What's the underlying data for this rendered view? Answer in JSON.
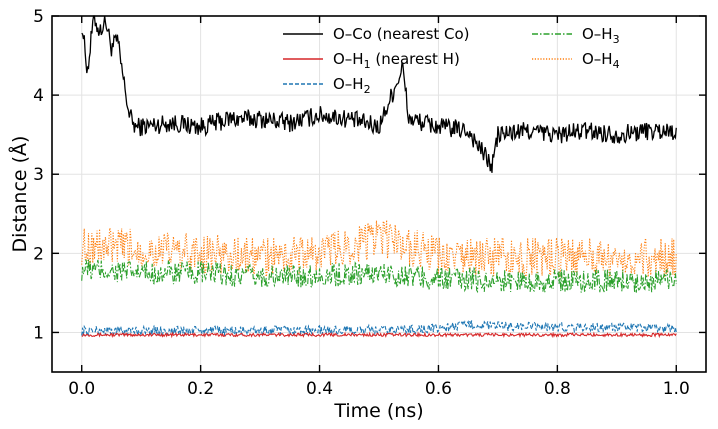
{
  "chart_data": {
    "type": "line",
    "title": "",
    "xlabel": "Time (ns)",
    "ylabel": "Distance (Å)",
    "xlim": [
      -0.05,
      1.05
    ],
    "ylim": [
      0.5,
      5.0
    ],
    "xticks": [
      0.0,
      0.2,
      0.4,
      0.6,
      0.8,
      1.0
    ],
    "xtick_labels": [
      "0.0",
      "0.2",
      "0.4",
      "0.6",
      "0.8",
      "1.0"
    ],
    "yticks": [
      1,
      2,
      3,
      4,
      5
    ],
    "ytick_labels": [
      "1",
      "2",
      "3",
      "4",
      "5"
    ],
    "grid": true,
    "legend_position": "top-right",
    "series": [
      {
        "name": "O–Co (nearest Co)",
        "legend_main": "O–Co (nearest Co)",
        "legend_sub": "",
        "legend_suffix": "",
        "color": "#000000",
        "style": "solid",
        "x": [
          0.0,
          0.01,
          0.02,
          0.03,
          0.04,
          0.05,
          0.06,
          0.07,
          0.08,
          0.09,
          0.1,
          0.15,
          0.2,
          0.25,
          0.3,
          0.35,
          0.4,
          0.45,
          0.5,
          0.54,
          0.55,
          0.6,
          0.65,
          0.69,
          0.7,
          0.75,
          0.8,
          0.85,
          0.9,
          0.95,
          1.0
        ],
        "y": [
          4.9,
          4.3,
          5.0,
          4.8,
          4.95,
          4.6,
          4.7,
          4.2,
          3.75,
          3.6,
          3.6,
          3.65,
          3.6,
          3.7,
          3.7,
          3.65,
          3.75,
          3.7,
          3.6,
          4.35,
          3.7,
          3.6,
          3.55,
          3.1,
          3.5,
          3.55,
          3.5,
          3.55,
          3.5,
          3.55,
          3.55
        ],
        "noise": 0.12
      },
      {
        "name": "O–H1 (nearest H)",
        "legend_main": "O–H",
        "legend_sub": "1",
        "legend_suffix": " (nearest H)",
        "color": "#d62728",
        "style": "solid",
        "x": [
          0.0,
          0.25,
          0.5,
          0.75,
          1.0
        ],
        "y": [
          0.97,
          0.97,
          0.97,
          0.97,
          0.97
        ],
        "noise": 0.02
      },
      {
        "name": "O–H2",
        "legend_main": "O–H",
        "legend_sub": "2",
        "legend_suffix": "",
        "color": "#1f77b4",
        "style": "dashed",
        "x": [
          0.0,
          0.25,
          0.5,
          0.6,
          0.65,
          0.7,
          0.8,
          0.9,
          1.0
        ],
        "y": [
          1.02,
          1.02,
          1.03,
          1.05,
          1.1,
          1.08,
          1.07,
          1.06,
          1.05
        ],
        "noise": 0.06
      },
      {
        "name": "O–H3",
        "legend_main": "O–H",
        "legend_sub": "3",
        "legend_suffix": "",
        "color": "#2ca02c",
        "style": "dashdot",
        "x": [
          0.0,
          0.1,
          0.2,
          0.3,
          0.4,
          0.5,
          0.6,
          0.7,
          0.8,
          0.9,
          1.0
        ],
        "y": [
          1.8,
          1.75,
          1.75,
          1.7,
          1.72,
          1.75,
          1.68,
          1.65,
          1.65,
          1.65,
          1.65
        ],
        "noise": 0.15
      },
      {
        "name": "O–H4",
        "legend_main": "O–H",
        "legend_sub": "4",
        "legend_suffix": "",
        "color": "#ff7f0e",
        "style": "dotted",
        "x": [
          0.0,
          0.1,
          0.2,
          0.3,
          0.4,
          0.5,
          0.55,
          0.6,
          0.7,
          0.8,
          0.9,
          1.0
        ],
        "y": [
          2.1,
          2.05,
          2.0,
          1.95,
          2.0,
          2.2,
          2.1,
          1.95,
          1.95,
          1.95,
          1.95,
          1.95
        ],
        "noise": 0.25
      }
    ]
  }
}
